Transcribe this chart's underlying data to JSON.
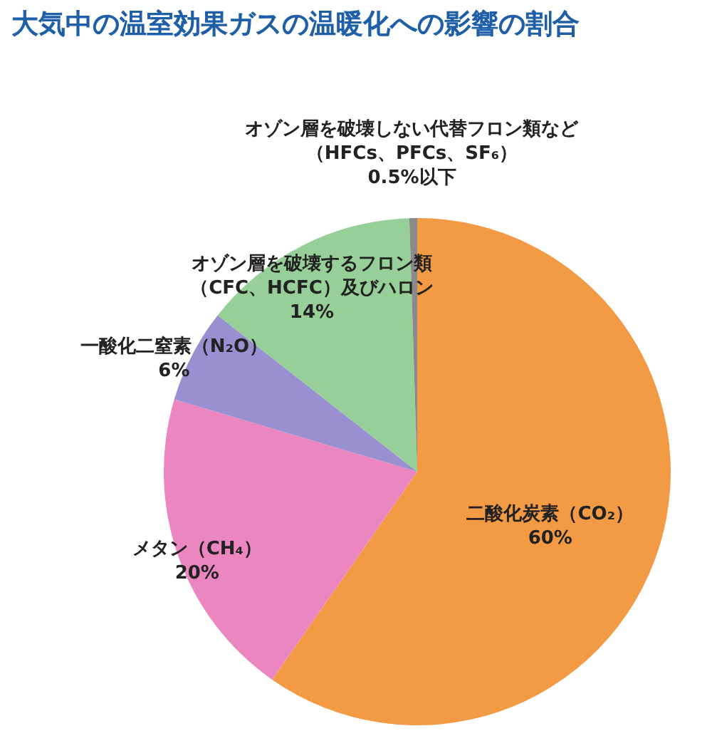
{
  "chart_data": {
    "type": "pie",
    "title": "大気中の温室効果ガスの温暖化への影響の割合",
    "categories": [
      "二酸化炭素（CO₂）",
      "メタン（CH₄）",
      "一酸化二窒素（N₂O）",
      "オゾン層を破壊するフロン類（CFC、HCFC）及びハロン",
      "オゾン層を破壊しない代替フロン類など（HFCs、PFCs、SF₆）"
    ],
    "values": [
      60,
      20,
      6,
      14,
      0.5
    ],
    "colors": [
      "#f39a45",
      "#ec86c0",
      "#9a8fd0",
      "#96cf98",
      "#8a8a8a"
    ],
    "value_labels": [
      "60%",
      "20%",
      "6%",
      "14%",
      "0.5%以下"
    ],
    "legend": false
  }
}
